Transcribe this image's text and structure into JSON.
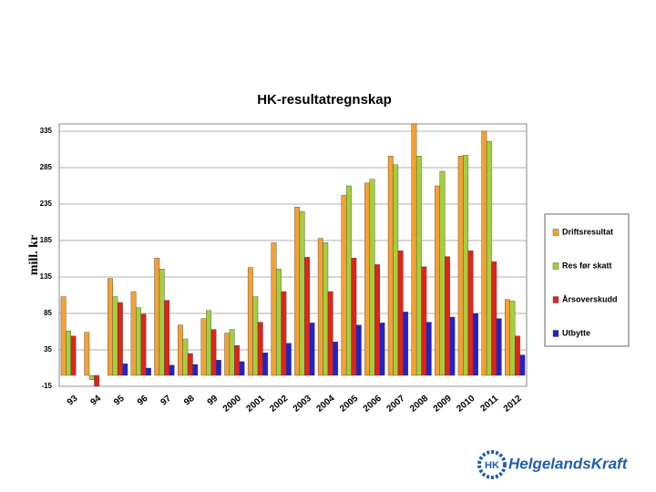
{
  "chart_data": {
    "type": "bar",
    "title": "HK-resultatregnskap",
    "y_label": "mill. kr",
    "categories": [
      "93",
      "94",
      "95",
      "96",
      "97",
      "98",
      "99",
      "2000",
      "2001",
      "2002",
      "2003",
      "2004",
      "2005",
      "2006",
      "2007",
      "2008",
      "2009",
      "2010",
      "2011",
      "2012"
    ],
    "series": [
      {
        "name": "Driftsresultat",
        "color": "#f5a033",
        "values": [
          108,
          59,
          133,
          115,
          161,
          69,
          78,
          58,
          148,
          182,
          231,
          188,
          247,
          264,
          301,
          345,
          260,
          301,
          335,
          104
        ]
      },
      {
        "name": "Res før skatt",
        "color": "#a4cf3c",
        "values": [
          61,
          -6,
          108,
          93,
          146,
          50,
          89,
          63,
          108,
          146,
          225,
          182,
          260,
          269,
          289,
          301,
          280,
          302,
          321,
          102
        ]
      },
      {
        "name": "Årsoverskudd",
        "color": "#e0241c",
        "values": [
          54,
          -15,
          100,
          84,
          103,
          30,
          63,
          41,
          73,
          115,
          162,
          115,
          161,
          152,
          171,
          149,
          163,
          171,
          156,
          54
        ]
      },
      {
        "name": "Utbytte",
        "color": "#2222c8",
        "values": [
          null,
          null,
          16,
          10,
          14,
          15,
          21,
          19,
          31,
          44,
          72,
          46,
          69,
          72,
          87,
          73,
          80,
          85,
          78,
          28
        ]
      }
    ],
    "ylim": [
      -15,
      345
    ],
    "yticks": [
      -15,
      35,
      85,
      135,
      185,
      235,
      285,
      335
    ],
    "grid": true,
    "legend": "right"
  },
  "logo": "HelgelandsKraft"
}
